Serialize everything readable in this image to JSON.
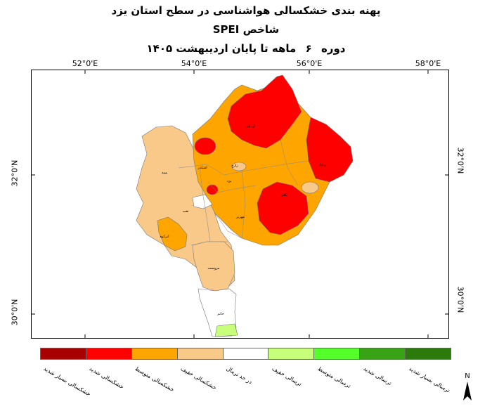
{
  "title_line1": "پهنه بندی خشکسالی هواشناسی در سطح استان یزد",
  "title_line2": "شاخص SPEI",
  "title_line3": {
    "period_word": "دوره",
    "number": "۶",
    "rest": "ماهه تا پایان اردیبهشت ۱۴۰۵"
  },
  "axes": {
    "top_ticks": [
      "52°0'E",
      "54°0'E",
      "56°0'E",
      "58°0'E"
    ],
    "left_ticks": [
      "32°0'N",
      "30°0'N"
    ],
    "right_ticks": [
      "32°0'N",
      "30°0'N"
    ]
  },
  "places": [
    {
      "name": "اردکان",
      "id": "ardakan"
    },
    {
      "name": "بهاباد",
      "id": "bahabad"
    },
    {
      "name": "اشکذر",
      "id": "ashkezar"
    },
    {
      "name": "میبد",
      "id": "meybod"
    },
    {
      "name": "زارچ",
      "id": "zarch"
    },
    {
      "name": "یزد",
      "id": "yazd"
    },
    {
      "name": "بافق",
      "id": "bafq"
    },
    {
      "name": "تفت",
      "id": "taft"
    },
    {
      "name": "مهریز",
      "id": "mehriz"
    },
    {
      "name": "ابرکوه",
      "id": "abarkuh"
    },
    {
      "name": "مروست",
      "id": "marvast"
    },
    {
      "name": "خاتم",
      "id": "khatam"
    }
  ],
  "legend": [
    {
      "label": "خشکسالی بسیار شدید",
      "color": "#a80000"
    },
    {
      "label": "خشکسالی شدید",
      "color": "#ff0000"
    },
    {
      "label": "خشکسالی متوسط",
      "color": "#ffa500"
    },
    {
      "label": "خشکسالی خفیف",
      "color": "#f9c98a"
    },
    {
      "label": "در حد نرمال",
      "color": "#ffffff"
    },
    {
      "label": "ترسالی خفیف",
      "color": "#c8ff7a"
    },
    {
      "label": "ترسالی متوسط",
      "color": "#55ff2a"
    },
    {
      "label": "ترسالی شدید",
      "color": "#3aa215"
    },
    {
      "label": "ترسالی بسیار شدید",
      "color": "#2b7a0b"
    }
  ],
  "north_label": "N"
}
